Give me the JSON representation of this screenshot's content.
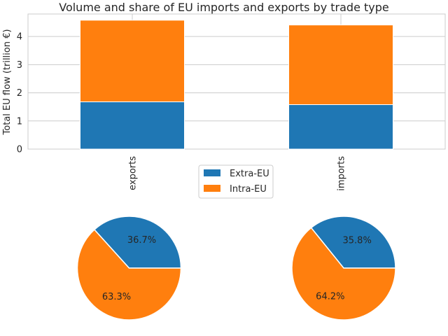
{
  "title": "Volume and share of EU imports and exports by trade type",
  "colors": {
    "extra": "#1f77b4",
    "intra": "#ff7f0e",
    "grid": "#cccccc",
    "spine": "#cccccc"
  },
  "legend": {
    "placement": "center, between bar chart and pies",
    "entries": [
      "Extra-EU",
      "Intra-EU"
    ]
  },
  "chart_data": [
    {
      "type": "bar",
      "stacked": true,
      "categories": [
        "exports",
        "imports"
      ],
      "series": [
        {
          "name": "Extra-EU",
          "values": [
            1.68,
            1.58
          ]
        },
        {
          "name": "Intra-EU",
          "values": [
            2.9,
            2.83
          ]
        }
      ],
      "ylabel": "Total EU flow (trillion €)",
      "ylim": [
        0,
        4.8
      ],
      "yticks": [
        0,
        1,
        2,
        3,
        4
      ],
      "grid": true
    },
    {
      "type": "pie",
      "labels": [
        "Extra-EU",
        "Intra-EU"
      ],
      "values": [
        36.7,
        63.3
      ],
      "value_labels": [
        "36.7%",
        "63.3%"
      ]
    },
    {
      "type": "pie",
      "labels": [
        "Extra-EU",
        "Intra-EU"
      ],
      "values": [
        35.8,
        64.2
      ],
      "value_labels": [
        "35.8%",
        "64.2%"
      ]
    }
  ]
}
